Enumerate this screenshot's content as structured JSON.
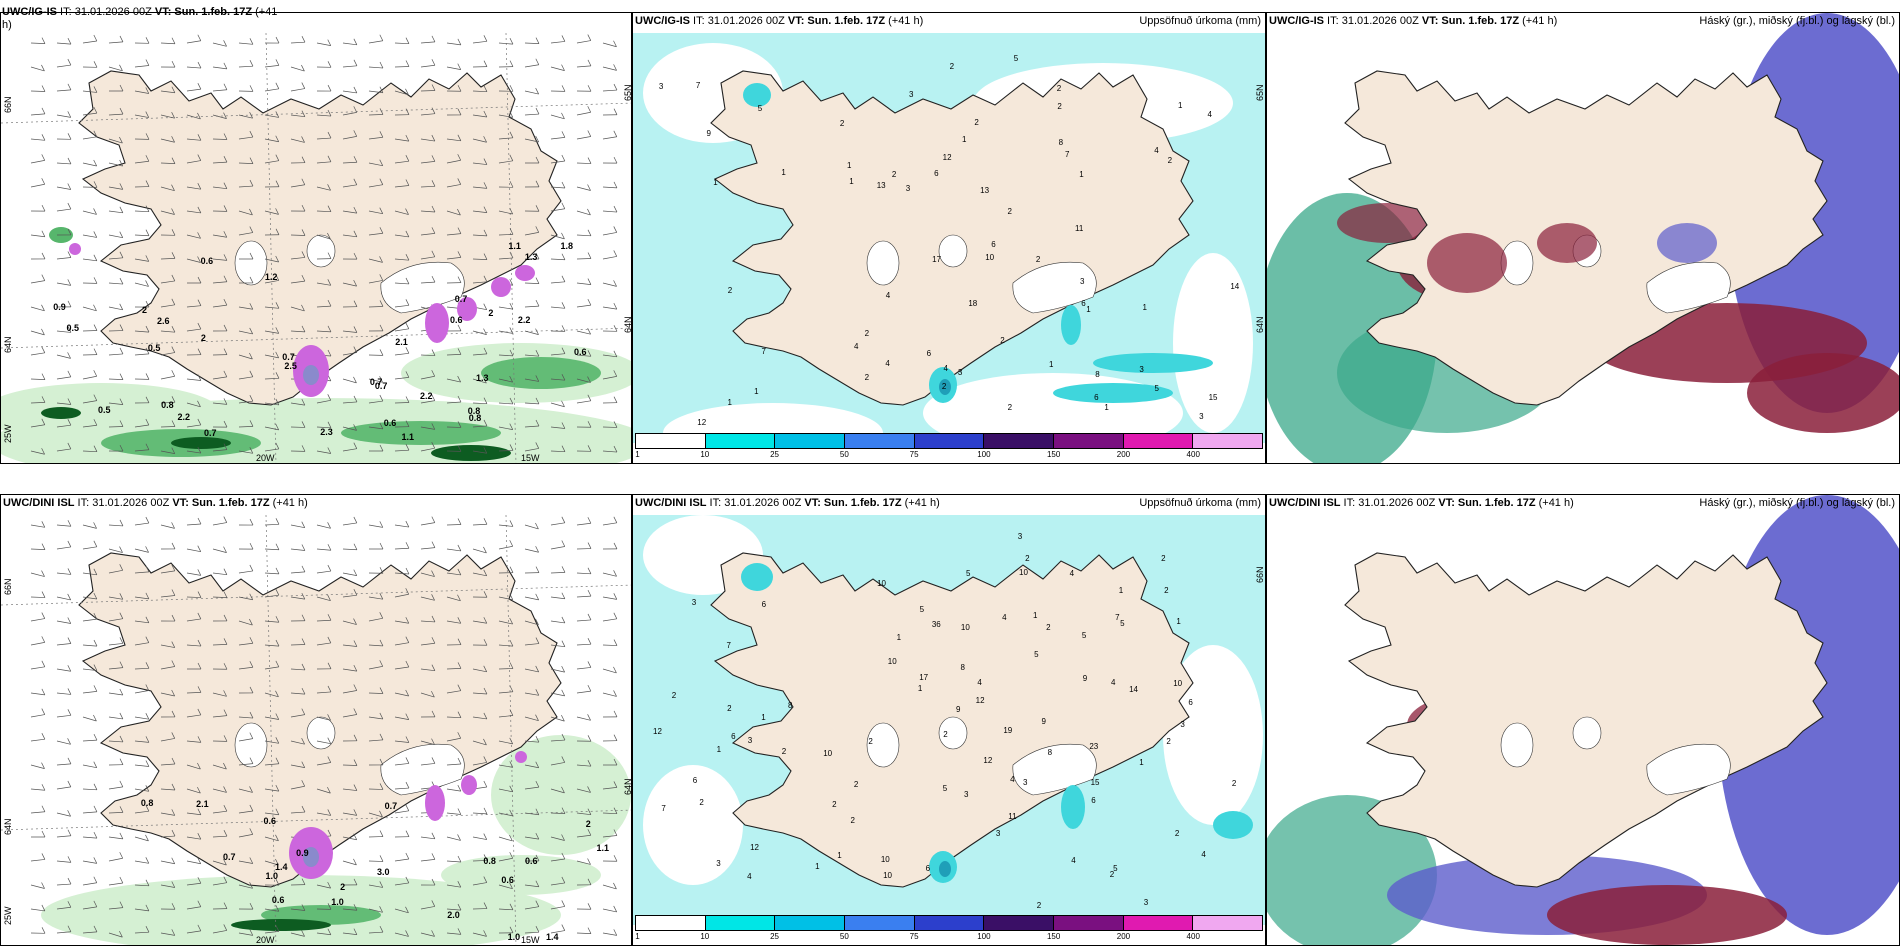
{
  "colors": {
    "land": "#f5e8da",
    "sea_white": "#ffffff",
    "precip_light": "#b8f2f2",
    "precip_mid": "#3fd6dc",
    "precip_dark": "#1f9fb8",
    "green_light": "#d5f0d3",
    "green_mid": "#57b66c",
    "green_dark": "#0d5c21",
    "magenta": "#cc66dd",
    "cloud_blue": "#5c5ccc",
    "cloud_red": "#8a1f3a",
    "cloud_green": "#3aa88a"
  },
  "panels": [
    {
      "id": "top-left",
      "header_prefix": "UWC/IG-IS",
      "header_it": " IT: 31.01.2026 00Z ",
      "header_vt_label": "VT:",
      "header_vt": " Sun. 1.feb. 17Z",
      "header_lead": " (+41",
      "header_wrap": "h)",
      "lat_labels": [
        "66N",
        "64N",
        "25W"
      ],
      "lon_labels": [
        "20W",
        "15W"
      ],
      "right_lat": [
        "65N",
        "64N"
      ],
      "values": [
        "1.1",
        "0.6",
        "0.8",
        "2",
        "2",
        "0.6",
        "0.6",
        "2",
        "2.5",
        "2.2",
        "0.5",
        "0.9",
        "0.7",
        "0.7",
        "0.6",
        "1.1",
        "0.5",
        "1.3",
        "1.3",
        "2.2",
        "0.8",
        "0.7",
        "0.7",
        "0.8",
        "2.1",
        "0.7",
        "0.5",
        "2.6",
        "2.3",
        "1.2",
        "2.2",
        "1.8"
      ]
    },
    {
      "id": "top-middle",
      "header_prefix": "UWC/IG-IS",
      "header_it": " IT: 31.01.2026 00Z ",
      "header_vt_label": "VT:",
      "header_vt": " Sun. 1.feb. 17Z",
      "header_lead": " (+41 h)",
      "header_right": "Uppsöfnuð úrkoma (mm)",
      "right_lat": [
        "65N",
        "64N"
      ],
      "values": [
        "1",
        "1",
        "6",
        "18",
        "3",
        "5",
        "3",
        "2",
        "8",
        "4",
        "3",
        "1",
        "4",
        "2",
        "1",
        "1",
        "6",
        "2",
        "17",
        "4",
        "3",
        "1",
        "2",
        "2",
        "1",
        "2",
        "2",
        "1",
        "2",
        "2",
        "5",
        "4",
        "2",
        "12",
        "10",
        "2",
        "4",
        "1",
        "1",
        "6",
        "1",
        "2",
        "2",
        "2",
        "11",
        "13",
        "12",
        "3",
        "14",
        "15",
        "9",
        "6",
        "7",
        "6",
        "7",
        "5",
        "4",
        "3",
        "2",
        "3",
        "13",
        "8",
        "7",
        "1",
        "1"
      ],
      "colorbar_ticks": [
        "1",
        "10",
        "25",
        "50",
        "75",
        "100",
        "150",
        "200",
        "400"
      ]
    },
    {
      "id": "top-right",
      "header_prefix": "UWC/IG-IS",
      "header_it": " IT: 31.01.2026 00Z ",
      "header_vt_label": "VT:",
      "header_vt": " Sun. 1.feb. 17Z",
      "header_lead": " (+41 h)",
      "header_right": "Háský (gr.), miðský (fj.bl.) og lágský (bl.)"
    },
    {
      "id": "bottom-left",
      "header_prefix": "UWC/DINI ISL",
      "header_it": " IT: 31.01.2026 00Z ",
      "header_vt_label": "VT:",
      "header_vt": " Sun. 1.feb. 17Z",
      "header_lead": " (+41 h)",
      "lat_labels": [
        "66N",
        "64N",
        "25W"
      ],
      "lon_labels": [
        "20W",
        "15W"
      ],
      "right_lat": [
        "64N"
      ],
      "values": [
        "2",
        "0.7",
        "2.1",
        "0.6",
        "1.4",
        "0.6",
        "1.0",
        "1.0",
        "0.6",
        "0.8",
        "0.6",
        "0.7",
        "0.8",
        "1.0",
        "1.4",
        "2.0",
        "3.0",
        "1.1",
        "2",
        "0.9"
      ]
    },
    {
      "id": "bottom-middle",
      "header_prefix": "UWC/DINI ISL",
      "header_it": " IT: 31.01.2026 00Z ",
      "header_vt_label": "VT:",
      "header_vt": " Sun. 1.feb. 17Z",
      "header_lead": " (+41 h)",
      "header_right": "Uppsöfnuð úrkoma (mm)",
      "right_lat": [
        "66N"
      ],
      "values": [
        "3",
        "3",
        "4",
        "3",
        "2",
        "7",
        "12",
        "10",
        "5",
        "36",
        "2",
        "2",
        "2",
        "10",
        "19",
        "2",
        "23",
        "9",
        "2",
        "3",
        "2",
        "10",
        "4",
        "2",
        "3",
        "2",
        "2",
        "2",
        "1",
        "2",
        "3",
        "1",
        "2",
        "1",
        "1",
        "1",
        "2",
        "4",
        "1",
        "2",
        "2",
        "3",
        "1",
        "3",
        "2",
        "1",
        "1",
        "2",
        "4",
        "5",
        "8",
        "10",
        "15",
        "14",
        "10",
        "12",
        "10",
        "17",
        "12",
        "9",
        "10",
        "7",
        "6",
        "5",
        "7",
        "6",
        "8",
        "12",
        "4",
        "5",
        "6",
        "6",
        "3",
        "4",
        "5",
        "6",
        "5",
        "11",
        "6",
        "10",
        "9",
        "4",
        "5",
        "4",
        "8",
        "1"
      ],
      "colorbar_ticks": [
        "1",
        "10",
        "25",
        "50",
        "75",
        "100",
        "150",
        "200",
        "400"
      ]
    },
    {
      "id": "bottom-right",
      "header_prefix": "UWC/DINI ISL",
      "header_it": " IT: 31.01.2026 00Z ",
      "header_vt_label": "VT:",
      "header_vt": " Sun. 1.feb. 17Z",
      "header_lead": " (+41 h)",
      "header_right": "Háský (gr.), miðský (fj.bl.) og lágský (bl.)"
    }
  ],
  "colorbar_colors": [
    "#ffffff",
    "#00e6e6",
    "#00c0e6",
    "#3a7ff0",
    "#2c3fcc",
    "#3a0f66",
    "#7a1080",
    "#e01ab0",
    "#f0a8f0"
  ]
}
